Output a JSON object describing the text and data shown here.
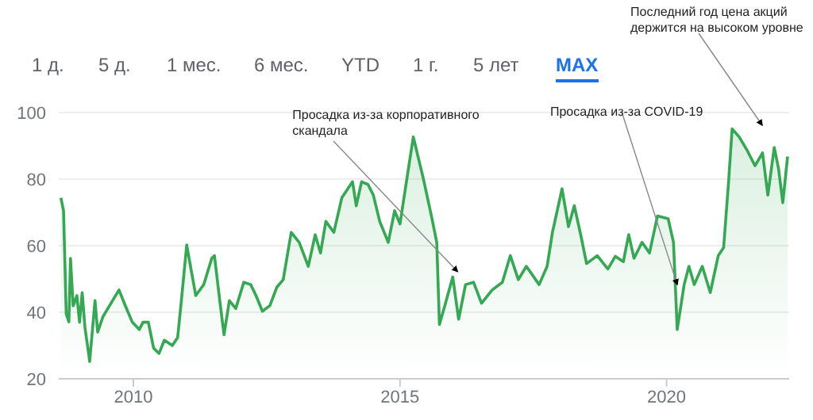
{
  "chart_data": {
    "type": "area",
    "color": "#34a853",
    "x": [
      2008.64,
      2008.69,
      2008.74,
      2008.79,
      2008.82,
      2008.87,
      2008.94,
      2008.99,
      2009.04,
      2009.09,
      2009.16,
      2009.18,
      2009.28,
      2009.33,
      2009.43,
      2009.58,
      2009.73,
      2009.85,
      2009.98,
      2010.11,
      2010.18,
      2010.28,
      2010.38,
      2010.48,
      2010.58,
      2010.73,
      2010.83,
      2010.9,
      2011.0,
      2011.08,
      2011.17,
      2011.32,
      2011.47,
      2011.52,
      2011.62,
      2011.7,
      2011.8,
      2011.92,
      2012.07,
      2012.2,
      2012.3,
      2012.42,
      2012.56,
      2012.69,
      2012.81,
      2012.96,
      2013.11,
      2013.28,
      2013.41,
      2013.51,
      2013.61,
      2013.76,
      2013.91,
      2014.11,
      2014.18,
      2014.28,
      2014.4,
      2014.5,
      2014.62,
      2014.78,
      2014.9,
      2015.0,
      2015.25,
      2015.44,
      2015.59,
      2015.69,
      2015.74,
      2015.84,
      2015.99,
      2016.1,
      2016.23,
      2016.38,
      2016.53,
      2016.73,
      2016.92,
      2017.07,
      2017.22,
      2017.37,
      2017.61,
      2017.76,
      2017.86,
      2018.04,
      2018.16,
      2018.27,
      2018.4,
      2018.5,
      2018.7,
      2018.9,
      2019.04,
      2019.19,
      2019.29,
      2019.39,
      2019.54,
      2019.68,
      2019.83,
      2020.03,
      2020.13,
      2020.2,
      2020.33,
      2020.42,
      2020.52,
      2020.67,
      2020.82,
      2020.97,
      2021.07,
      2021.16,
      2021.23,
      2021.36,
      2021.51,
      2021.66,
      2021.8,
      2021.9,
      2022.02,
      2022.1,
      2022.18,
      2022.27
    ],
    "values": [
      74.4,
      70.5,
      39.5,
      37.1,
      56.2,
      41.9,
      45,
      37,
      45.9,
      35.6,
      27.6,
      25.2,
      43.5,
      34,
      38.7,
      42.7,
      46.7,
      41.9,
      37,
      34.8,
      37,
      37,
      29.2,
      27.6,
      31.6,
      30,
      32.4,
      43.5,
      60.2,
      53,
      45,
      48.3,
      56.2,
      57,
      43.5,
      33.2,
      43.5,
      41.1,
      49,
      48.3,
      45,
      40.3,
      42,
      47.5,
      49.8,
      64,
      61,
      53.8,
      63.3,
      57.8,
      67.3,
      64,
      74.4,
      79.2,
      72,
      79.2,
      78.4,
      75.2,
      67.3,
      61,
      70.5,
      66.5,
      92.7,
      80,
      68.9,
      61,
      36.3,
      41.9,
      50.6,
      37.9,
      48.3,
      49,
      42.7,
      46.7,
      49,
      57,
      49.8,
      53.8,
      48.3,
      53.8,
      64,
      77.1,
      65.7,
      72,
      62.5,
      54.6,
      57,
      53,
      56.8,
      55.2,
      63.3,
      56.2,
      61,
      57.8,
      68.9,
      68.1,
      61,
      34.8,
      48.3,
      53.8,
      48.3,
      53.8,
      45.9,
      57,
      59.4,
      78.4,
      95.1,
      92.7,
      88.7,
      84,
      87.9,
      75.2,
      89.5,
      83.2,
      72.9,
      86.8
    ],
    "xlim": [
      2008.6,
      2022.3
    ],
    "xticks": [
      2010,
      2015,
      2020
    ],
    "ylim": [
      20,
      100
    ],
    "yticks": [
      20,
      40,
      60,
      80,
      100
    ],
    "grid": "y",
    "annotations": [
      "1 д.",
      "5 д.",
      "1 мес.",
      "6 мес.",
      "YTD",
      "1 г.",
      "5 лет",
      "MAX",
      {
        "text": "Просадка из-за корпоративного скандала",
        "x": 2016.08,
        "y": 52.2
      },
      {
        "text": "Просадка из-за COVID-19",
        "x": 2020.2,
        "y": 48.3
      },
      "Последний год цена акций держится на высоком уровне"
    ]
  }
}
